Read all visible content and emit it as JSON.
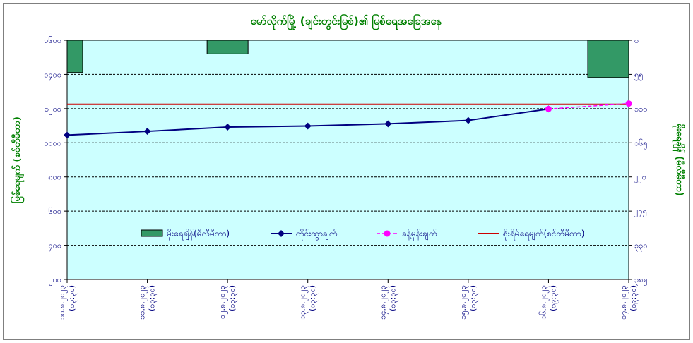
{
  "chart_data": {
    "type": "bar+line",
    "title": "မော်လိုက်မြို့ (ချင်းတွင်းမြစ်)၏ မြစ်ရေအခြေအနေ",
    "y_left_label": "မြစ်ရေမျက် (စင်တီမီတာ)",
    "y_right_label": "မိုးရေချိန် (မီလီမီတာ)",
    "y_left_ticks": [
      "၂၀၀",
      "၄၀၀",
      "၆၀၀",
      "၈၀၀",
      "၁၀၀၀",
      "၁၂၀၀",
      "၁၄၀၀",
      "၁၆၀၀"
    ],
    "y_left_tick_values": [
      200,
      400,
      600,
      800,
      1000,
      1200,
      1400,
      1600
    ],
    "ylim_left": [
      200,
      1600
    ],
    "y_right_ticks": [
      "၀",
      "၅၅",
      "၁၁၀",
      "၁၆၅",
      "၂၂၀",
      "၂၇၅",
      "၃၃၀",
      "၃၈၅"
    ],
    "y_right_tick_values": [
      0,
      55,
      110,
      165,
      220,
      275,
      330,
      385
    ],
    "ylim_right": [
      0,
      385
    ],
    "y_right_inverted": true,
    "categories": [
      [
        "၁၀.၈.၂၀၂၃",
        "(၀၃:၃၀)"
      ],
      [
        "၁၁.၈.၂၀၂၃",
        "(၀၃:၃၀)"
      ],
      [
        "၁၂.၈.၂၀၂၃",
        "(၀၃:၃၀)"
      ],
      [
        "၁၃.၈.၂၀၂၃",
        "(၀၃:၃၀)"
      ],
      [
        "၁၄.၈.၂၀၂၃",
        "(၀၃:၃၀)"
      ],
      [
        "၁၅.၈.၂၀၂၃",
        "(၀၃:၃၀)"
      ],
      [
        "၁၆.၈.၂၀၂၃",
        "(၀၉:၃၀)"
      ],
      [
        "၁၇.၈.၂၀၂၃",
        "(၀၉:၃၀)"
      ]
    ],
    "series": [
      {
        "name": "မိုးရေချိန်(မီလီမီတာ)",
        "type": "bar",
        "axis": "right",
        "color": "#339966",
        "values": [
          52,
          0,
          22,
          0,
          0,
          0,
          0,
          60
        ]
      },
      {
        "name": "တိုင်းထွာချက်",
        "type": "line",
        "axis": "left",
        "color": "#000080",
        "values": [
          1045,
          1067,
          1092,
          1098,
          1111,
          1131,
          1198,
          null
        ]
      },
      {
        "name": "ခန့်မှန်းချက်",
        "type": "dashed-line",
        "axis": "left",
        "color": "#ff00ff",
        "values": [
          null,
          null,
          null,
          null,
          null,
          null,
          1198,
          1230
        ]
      },
      {
        "name": "စိုးရိမ်ရေမျက်(စင်တီမီတာ)",
        "type": "hline",
        "axis": "left",
        "color": "#cc0000",
        "value": 1225
      }
    ],
    "grid": true,
    "plot_background": "#ccffff"
  }
}
